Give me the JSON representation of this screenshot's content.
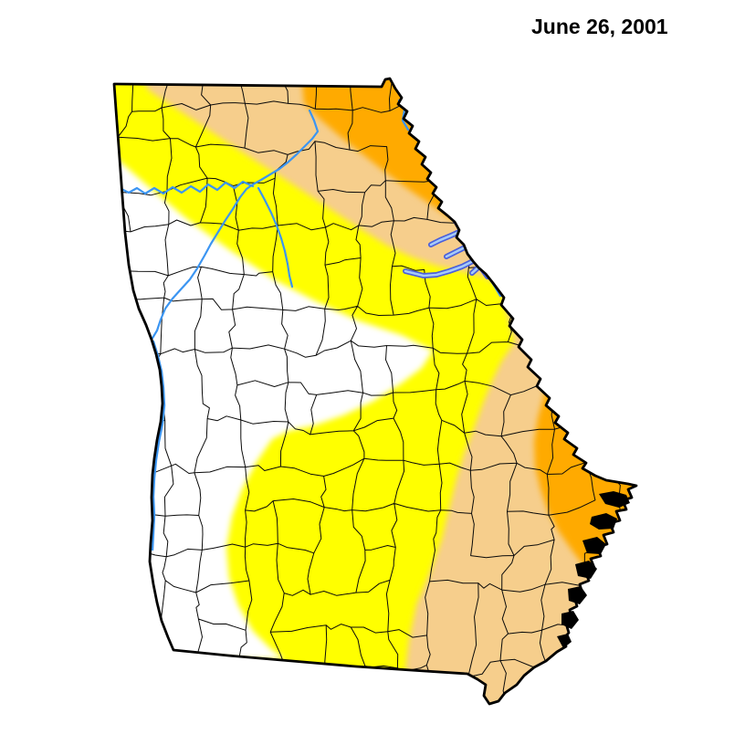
{
  "title": "June 26, 2001",
  "colors": {
    "none": "#FFFFFF",
    "d0_abnormally_dry": "#FFFF00",
    "d1_moderate_drought": "#F6CE8C",
    "d2_severe_drought": "#FFAA00",
    "county_line": "#0A0A0A",
    "state_border": "#000000",
    "river": "#3B95F2",
    "lake_outline": "#4A5FDC",
    "lake_fill": "#A6CBF7"
  }
}
